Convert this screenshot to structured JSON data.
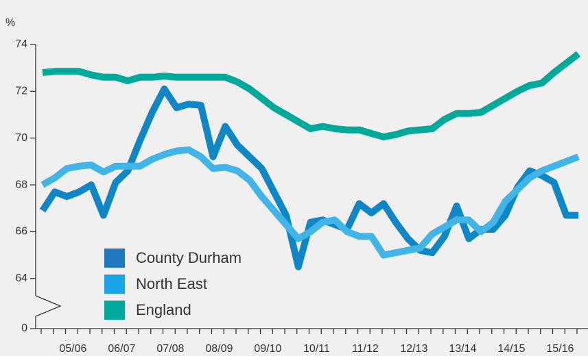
{
  "chart_data": {
    "type": "line",
    "y_unit_label": "%",
    "categories": [
      null,
      null,
      "05/06",
      null,
      null,
      null,
      "06/07",
      null,
      null,
      null,
      "07/08",
      null,
      null,
      null,
      "08/09",
      null,
      null,
      null,
      "09/10",
      null,
      null,
      null,
      "10/11",
      null,
      null,
      null,
      "11/12",
      null,
      null,
      null,
      "12/13",
      null,
      null,
      null,
      "13/14",
      null,
      null,
      null,
      "14/15",
      null,
      null,
      null,
      "15/16",
      null,
      null
    ],
    "series": [
      {
        "name": "County Durham",
        "color": "#0f86c6",
        "legend_color": "#1f78c1",
        "values": [
          66.9,
          67.7,
          67.5,
          67.7,
          68.0,
          66.7,
          68.1,
          68.6,
          69.9,
          71.1,
          72.1,
          71.3,
          71.45,
          71.4,
          69.2,
          70.5,
          69.7,
          69.2,
          68.7,
          67.7,
          66.7,
          64.5,
          66.4,
          66.5,
          66.3,
          66.1,
          67.2,
          66.8,
          67.2,
          66.4,
          65.7,
          65.2,
          65.1,
          65.8,
          67.1,
          65.7,
          66.1,
          66.1,
          66.7,
          67.9,
          68.6,
          68.4,
          68.1,
          66.7,
          66.7
        ]
      },
      {
        "name": "North East",
        "color": "#42b5e8",
        "legend_color": "#1aa3e8",
        "values": [
          68.0,
          68.3,
          68.7,
          68.8,
          68.85,
          68.55,
          68.8,
          68.8,
          68.8,
          69.1,
          69.3,
          69.45,
          69.5,
          69.2,
          68.7,
          68.75,
          68.6,
          68.2,
          67.5,
          66.9,
          66.3,
          65.7,
          66.0,
          66.4,
          66.5,
          66.0,
          65.8,
          65.8,
          65.0,
          65.1,
          65.2,
          65.3,
          65.9,
          66.2,
          66.5,
          66.5,
          66.0,
          66.4,
          67.3,
          67.8,
          68.3,
          68.6,
          68.8,
          69.0,
          69.2
        ]
      },
      {
        "name": "England",
        "color": "#00a99a",
        "legend_color": "#00a99d",
        "values": [
          72.8,
          72.85,
          72.85,
          72.85,
          72.7,
          72.6,
          72.6,
          72.45,
          72.6,
          72.6,
          72.65,
          72.6,
          72.6,
          72.6,
          72.6,
          72.6,
          72.4,
          72.1,
          71.7,
          71.3,
          71.0,
          70.7,
          70.4,
          70.5,
          70.4,
          70.35,
          70.35,
          70.2,
          70.05,
          70.15,
          70.3,
          70.35,
          70.4,
          70.8,
          71.05,
          71.05,
          71.1,
          71.4,
          71.7,
          72.0,
          72.25,
          72.35,
          72.8,
          73.2,
          73.6
        ]
      }
    ],
    "ylim": [
      0,
      74
    ],
    "y_break": [
      0,
      62.5
    ],
    "yticks": [
      0,
      64,
      66,
      68,
      70,
      72,
      74
    ],
    "grid": false,
    "legend": "lower left"
  }
}
